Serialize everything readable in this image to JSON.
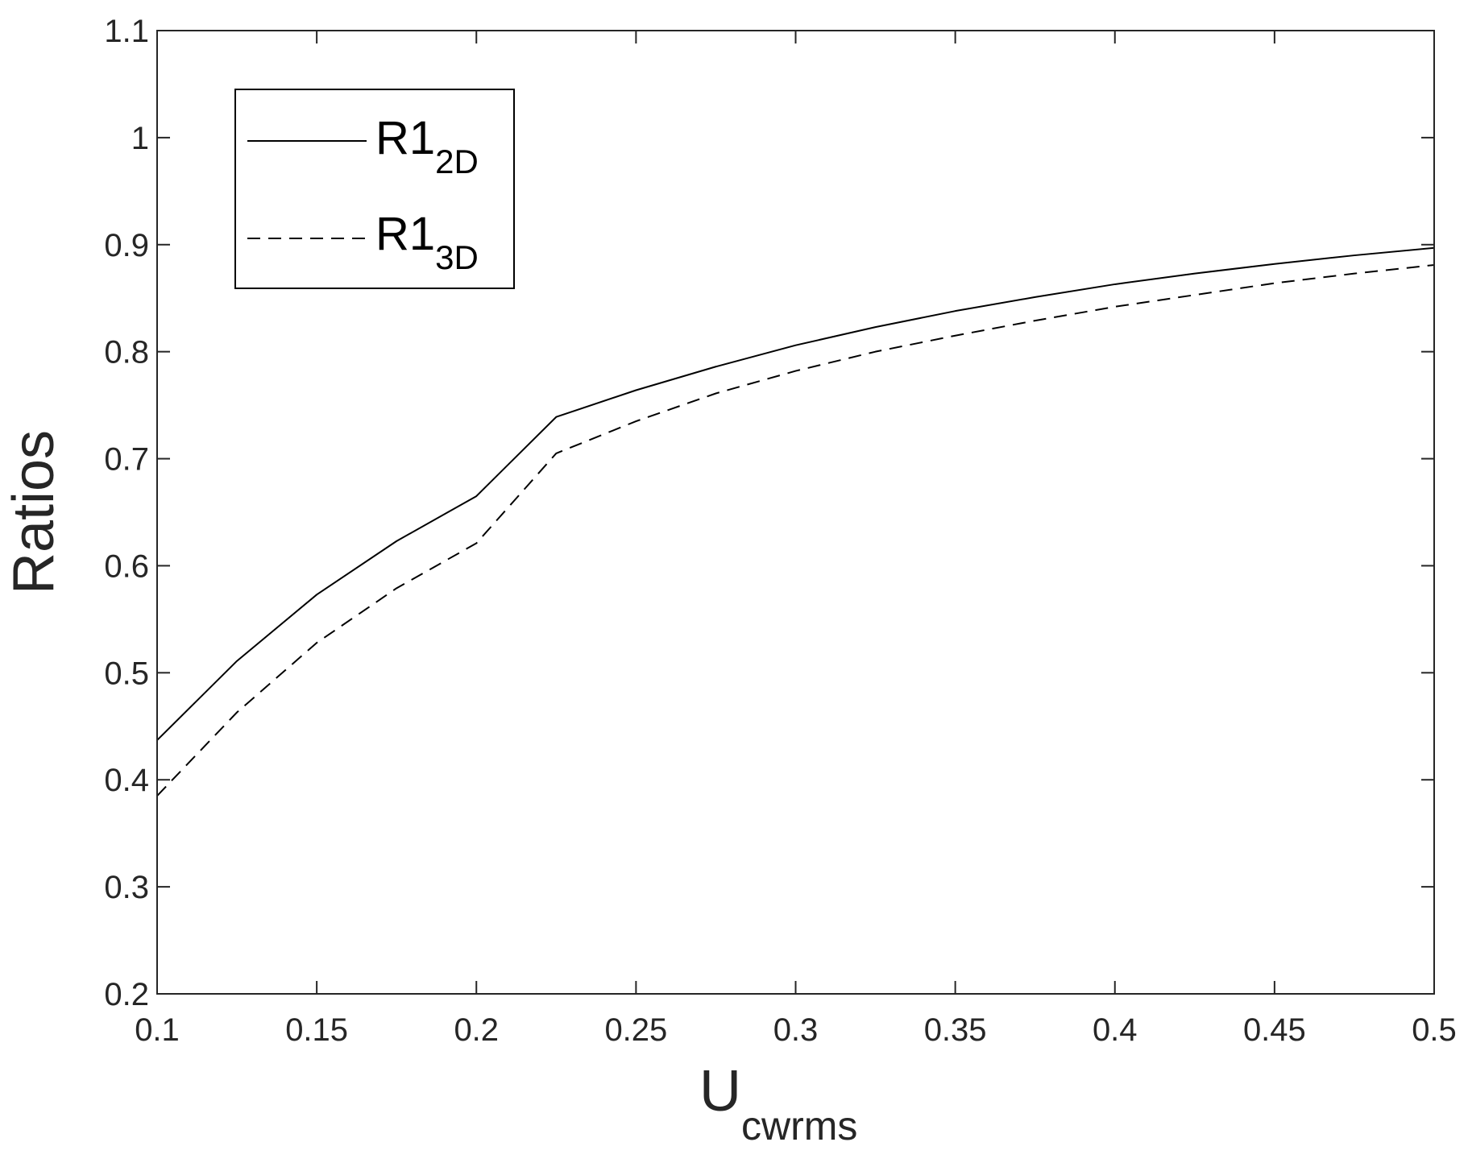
{
  "chart_data": {
    "type": "line",
    "title": "",
    "xlabel": {
      "main": "U",
      "sub": "cwrms"
    },
    "ylabel": "Ratios",
    "xlim": [
      0.1,
      0.5
    ],
    "ylim": [
      0.2,
      1.1
    ],
    "xticks": [
      "0.1",
      "0.15",
      "0.2",
      "0.25",
      "0.3",
      "0.35",
      "0.4",
      "0.45",
      "0.5"
    ],
    "yticks": [
      "0.2",
      "0.3",
      "0.4",
      "0.5",
      "0.6",
      "0.7",
      "0.8",
      "0.9",
      "1",
      "1.1"
    ],
    "grid": false,
    "legend_position": "top-left",
    "x": [
      0.1,
      0.125,
      0.15,
      0.175,
      0.2,
      0.225,
      0.25,
      0.275,
      0.3,
      0.325,
      0.35,
      0.375,
      0.4,
      0.425,
      0.45,
      0.475,
      0.5
    ],
    "series": [
      {
        "name": "R1",
        "name_sub": "2D",
        "style": "solid",
        "color": "#000000",
        "values": [
          0.437,
          0.511,
          0.573,
          0.623,
          0.665,
          0.739,
          0.764,
          0.786,
          0.806,
          0.823,
          0.838,
          0.851,
          0.863,
          0.873,
          0.882,
          0.89,
          0.897
        ]
      },
      {
        "name": "R1",
        "name_sub": "3D",
        "style": "dashed",
        "color": "#000000",
        "values": [
          0.385,
          0.463,
          0.528,
          0.579,
          0.621,
          0.705,
          0.735,
          0.761,
          0.782,
          0.8,
          0.815,
          0.829,
          0.842,
          0.853,
          0.864,
          0.873,
          0.881
        ]
      }
    ]
  }
}
